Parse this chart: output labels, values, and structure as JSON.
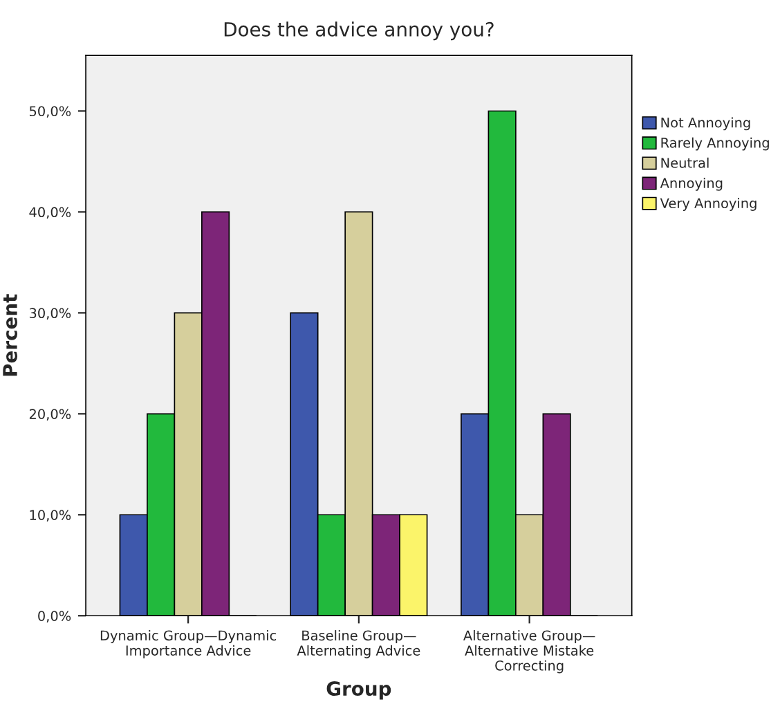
{
  "chart_data": {
    "type": "bar",
    "title": "Does the advice annoy you?",
    "xlabel": "Group",
    "ylabel": "Percent",
    "categories": [
      "Dynamic Group—Dynamic\nImportance Advice",
      "Baseline Group—\nAlternating Advice",
      "Alternative Group—\nAlternative Mistake\nCorrecting"
    ],
    "series": [
      {
        "name": "Not Annoying",
        "color": "#3e58ac",
        "values": [
          10,
          30,
          20
        ]
      },
      {
        "name": "Rarely Annoying",
        "color": "#22b93d",
        "values": [
          20,
          10,
          50
        ]
      },
      {
        "name": "Neutral",
        "color": "#d6cf9c",
        "values": [
          30,
          40,
          10
        ]
      },
      {
        "name": "Annoying",
        "color": "#7d2578",
        "values": [
          40,
          10,
          20
        ]
      },
      {
        "name": "Very Annoying",
        "color": "#fbf46a",
        "values": [
          0,
          10,
          0
        ]
      }
    ],
    "ylim": [
      0,
      55.5
    ],
    "yticks": [
      {
        "value": 0,
        "label": "0,0%"
      },
      {
        "value": 10,
        "label": "10,0%"
      },
      {
        "value": 20,
        "label": "20,0%"
      },
      {
        "value": 30,
        "label": "30,0%"
      },
      {
        "value": 40,
        "label": "40,0%"
      },
      {
        "value": 50,
        "label": "50,0%"
      }
    ],
    "legend": "right",
    "grid": false
  }
}
